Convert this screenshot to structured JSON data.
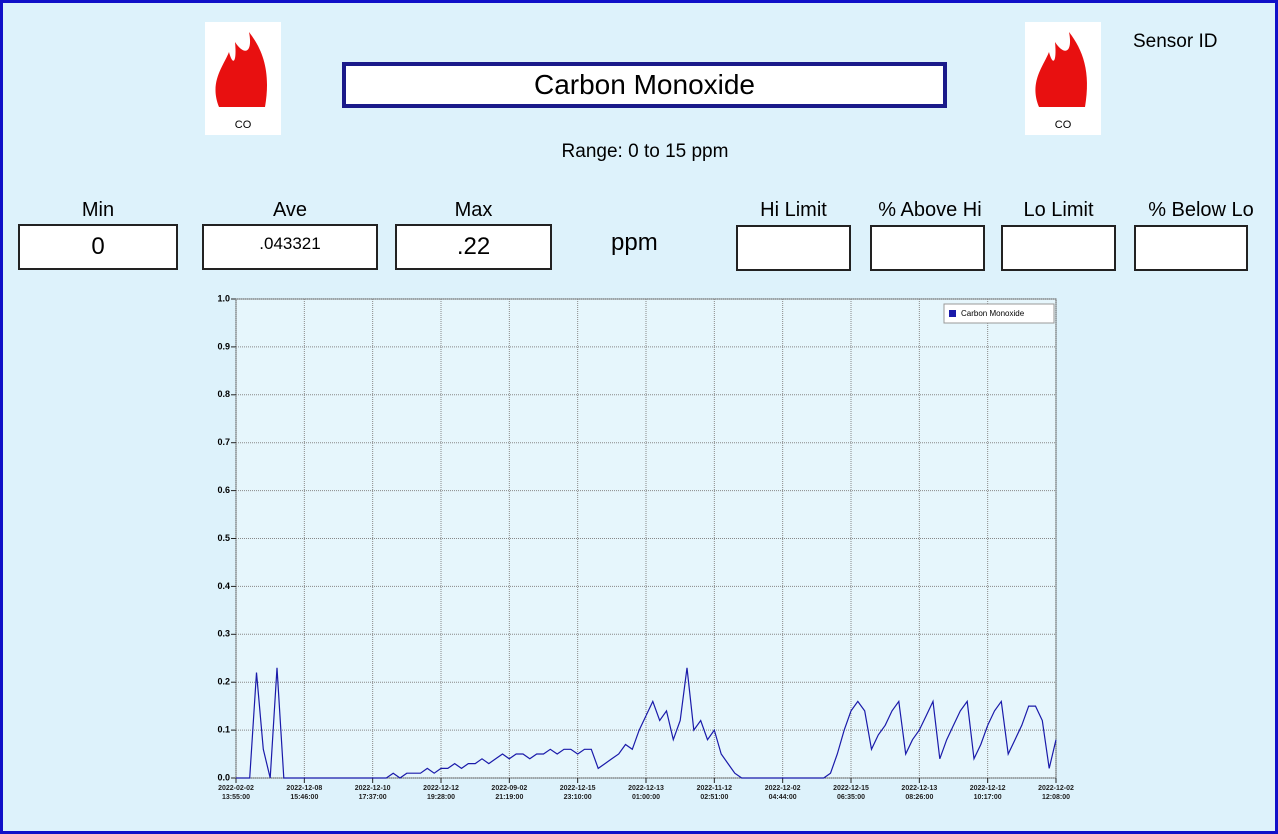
{
  "header": {
    "title": "Carbon Monoxide",
    "range": "Range: 0 to 15 ppm",
    "sensor_id": "Sensor ID",
    "icon_left": "CO",
    "icon_right": "CO"
  },
  "stats": {
    "min_label": "Min",
    "min": "0",
    "ave_label": "Ave",
    "ave": ".043321",
    "max_label": "Max",
    "max": ".22",
    "unit": "ppm",
    "hi_limit_label": "Hi Limit",
    "above_hi_label": "% Above Hi",
    "lo_limit_label": "Lo Limit",
    "below_lo_label": "% Below Lo"
  },
  "chart_data": {
    "type": "line",
    "grid": true,
    "legend": "upper right",
    "xlim": [
      0,
      120
    ],
    "xticks": [
      {
        "value": 0,
        "label": "2022-02-02 13:55:00"
      },
      {
        "value": 10,
        "label": "2022-12-08 15:46:00"
      },
      {
        "value": 20,
        "label": "2022-12-10 17:37:00"
      },
      {
        "value": 30,
        "label": "2022-12-12 19:28:00"
      },
      {
        "value": 40,
        "label": "2022-09-02 21:19:00"
      },
      {
        "value": 50,
        "label": "2022-12-15 23:10:00"
      },
      {
        "value": 60,
        "label": "2022-12-13 01:00:00"
      },
      {
        "value": 70,
        "label": "2022-11-12 02:51:00"
      },
      {
        "value": 80,
        "label": "2022-12-02 04:44:00"
      },
      {
        "value": 90,
        "label": "2022-12-15 06:35:00"
      },
      {
        "value": 100,
        "label": "2022-12-13 08:26:00"
      },
      {
        "value": 110,
        "label": "2022-12-12 10:17:00"
      },
      {
        "value": 120,
        "label": "2022-12-02 12:08:00"
      }
    ],
    "ylim": [
      0,
      1
    ],
    "yticks": [
      {
        "value": 0,
        "label": "0.0"
      },
      0.1,
      0.2,
      0.3,
      0.4,
      0.5,
      0.6,
      0.7,
      0.8,
      0.9,
      {
        "value": 1,
        "label": "1.0"
      }
    ],
    "series": [
      {
        "name": "Carbon Monoxide",
        "color": "#1a1aaa",
        "values": [
          0,
          0,
          0,
          0.22,
          0.06,
          0,
          0.23,
          0,
          0,
          0,
          0,
          0,
          0,
          0,
          0,
          0,
          0,
          0,
          0,
          0,
          0,
          0,
          0,
          0.01,
          0,
          0.01,
          0.01,
          0.01,
          0.02,
          0.01,
          0.02,
          0.02,
          0.03,
          0.02,
          0.03,
          0.03,
          0.04,
          0.03,
          0.04,
          0.05,
          0.04,
          0.05,
          0.05,
          0.04,
          0.05,
          0.05,
          0.06,
          0.05,
          0.06,
          0.06,
          0.05,
          0.06,
          0.06,
          0.02,
          0.03,
          0.04,
          0.05,
          0.07,
          0.06,
          0.1,
          0.13,
          0.16,
          0.12,
          0.14,
          0.08,
          0.12,
          0.23,
          0.1,
          0.12,
          0.08,
          0.1,
          0.05,
          0.03,
          0.01,
          0,
          0,
          0,
          0,
          0,
          0,
          0,
          0,
          0,
          0,
          0,
          0,
          0,
          0.01,
          0.05,
          0.1,
          0.14,
          0.16,
          0.14,
          0.06,
          0.09,
          0.11,
          0.14,
          0.16,
          0.05,
          0.08,
          0.1,
          0.13,
          0.16,
          0.04,
          0.08,
          0.11,
          0.14,
          0.16,
          0.04,
          0.07,
          0.11,
          0.14,
          0.16,
          0.05,
          0.08,
          0.11,
          0.15,
          0.15,
          0.12,
          0.02,
          0.08
        ]
      }
    ]
  }
}
